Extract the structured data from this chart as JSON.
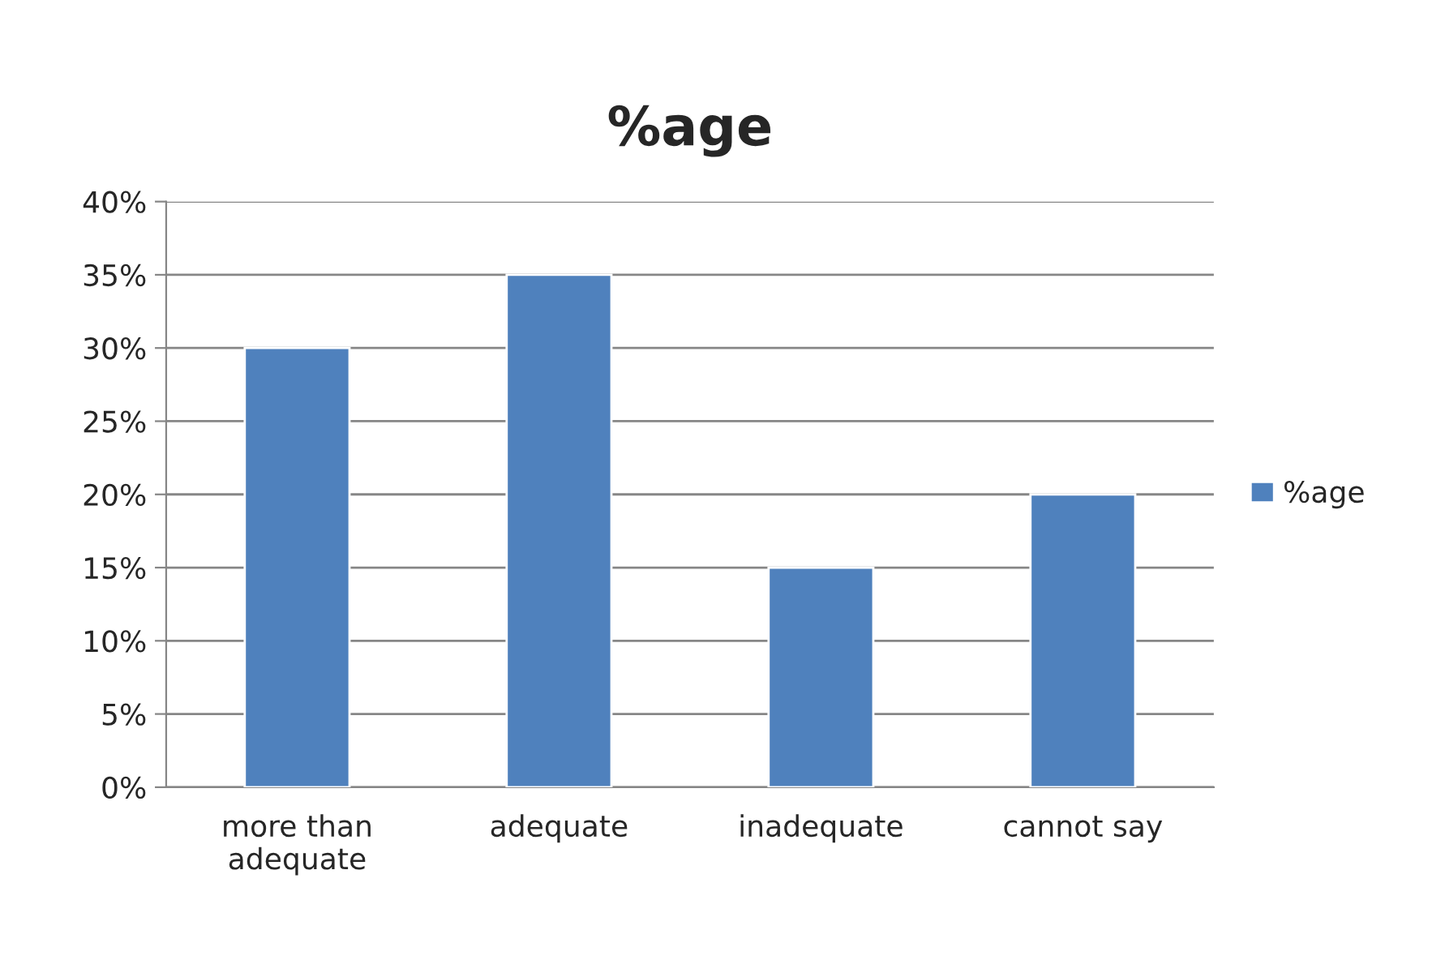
{
  "chart_data": {
    "type": "bar",
    "title": "%age",
    "categories": [
      "more than\nadequate",
      "adequate",
      "inadequate",
      "cannot say"
    ],
    "series": [
      {
        "name": "%age",
        "color": "#4f81bd",
        "values": [
          30,
          35,
          15,
          20
        ]
      }
    ],
    "ylim": [
      0,
      40
    ],
    "yticks": [
      {
        "value": 0,
        "label": "0%"
      },
      {
        "value": 5,
        "label": "5%"
      },
      {
        "value": 10,
        "label": "10%"
      },
      {
        "value": 15,
        "label": "15%"
      },
      {
        "value": 20,
        "label": "20%"
      },
      {
        "value": 25,
        "label": "25%"
      },
      {
        "value": 30,
        "label": "30%"
      },
      {
        "value": 35,
        "label": "35%"
      },
      {
        "value": 40,
        "label": "40%"
      }
    ],
    "grid": "y",
    "legend": "right"
  }
}
